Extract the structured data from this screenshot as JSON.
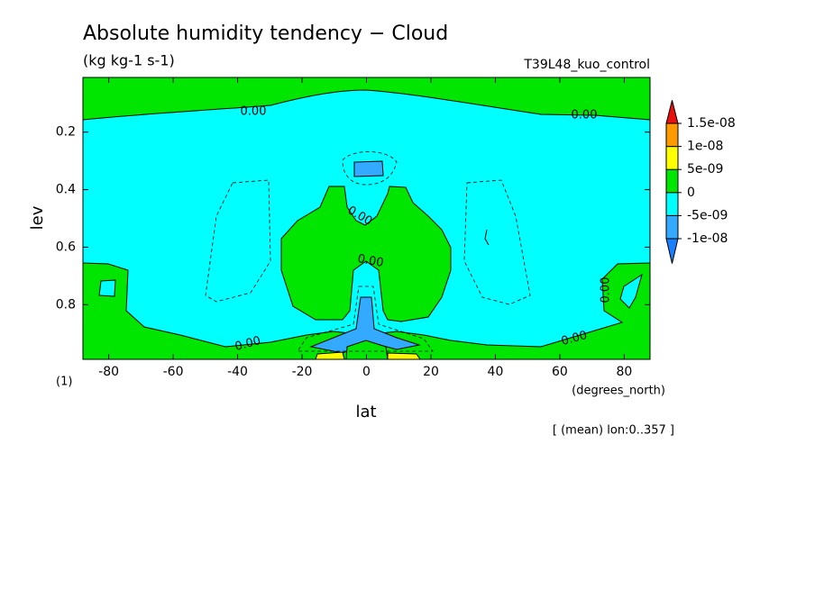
{
  "chart_data": {
    "type": "contour",
    "title": "Absolute humidity tendency − Cloud",
    "subtitle": "(kg kg-1 s-1)",
    "run_label": "T39L48_kuo_control",
    "x_label": "lat",
    "x_units": "(degrees_north)",
    "y_label": "lev",
    "panel_label": "(1)",
    "footnote": "[ (mean) lon:0..357 ]",
    "contour_label": "0.00",
    "xlim": [
      -88,
      88
    ],
    "xticks": [
      -80,
      -60,
      -40,
      -20,
      0,
      20,
      40,
      60,
      80
    ],
    "ylim": [
      0.99,
      0.01
    ],
    "yticks": [
      0.2,
      0.4,
      0.6,
      0.8
    ],
    "colorbar": {
      "levels": [
        {
          "value": -1e-08,
          "label": "-1e-08"
        },
        {
          "value": -5e-09,
          "label": "-5e-09"
        },
        0,
        {
          "value": 5e-09,
          "label": "5e-09"
        },
        {
          "value": 1e-08,
          "label": "1e-08"
        },
        {
          "value": 1.5e-08,
          "label": "1.5e-08"
        }
      ],
      "colors": [
        "#1a7fff",
        "#33aaff",
        "#00ffff",
        "#00e600",
        "#ffff00",
        "#ff9900",
        "#e81010"
      ]
    }
  }
}
